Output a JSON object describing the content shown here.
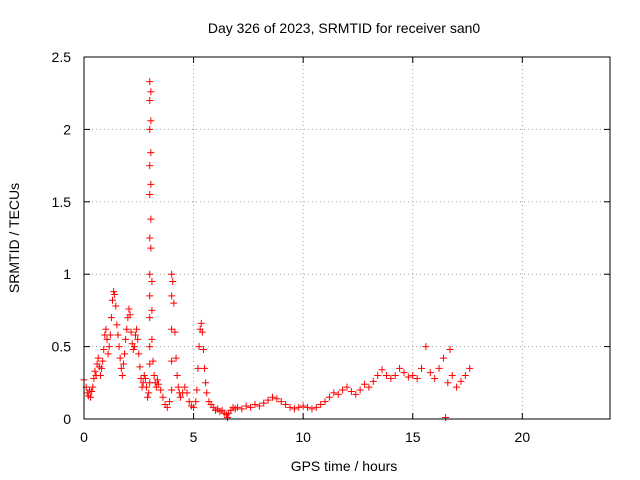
{
  "chart_data": {
    "type": "scatter",
    "title": "Day 326 of 2023, SRMTID for receiver san0",
    "xlabel": "GPS time / hours",
    "ylabel": "SRMTID / TECUs",
    "xlim": [
      0,
      24
    ],
    "ylim": [
      0,
      2.5
    ],
    "xticks": [
      0,
      5,
      10,
      15,
      20
    ],
    "xtick_labels": [
      "0",
      "5",
      "10",
      "15",
      "20"
    ],
    "yticks": [
      0,
      0.5,
      1,
      1.5,
      2,
      2.5
    ],
    "ytick_labels": [
      "0",
      "0.5",
      "1",
      "1.5",
      "2",
      "2.5"
    ],
    "grid": true,
    "marker": "+",
    "marker_color": "#ff0000",
    "series": [
      {
        "name": "SRMTID",
        "points": [
          [
            0.0,
            0.27
          ],
          [
            0.1,
            0.22
          ],
          [
            0.15,
            0.18
          ],
          [
            0.2,
            0.16
          ],
          [
            0.25,
            0.2
          ],
          [
            0.3,
            0.15
          ],
          [
            0.35,
            0.19
          ],
          [
            0.4,
            0.22
          ],
          [
            0.45,
            0.28
          ],
          [
            0.5,
            0.33
          ],
          [
            0.55,
            0.3
          ],
          [
            0.6,
            0.38
          ],
          [
            0.65,
            0.42
          ],
          [
            0.7,
            0.36
          ],
          [
            0.75,
            0.3
          ],
          [
            0.8,
            0.35
          ],
          [
            0.85,
            0.4
          ],
          [
            0.9,
            0.48
          ],
          [
            0.95,
            0.58
          ],
          [
            1.0,
            0.62
          ],
          [
            1.05,
            0.55
          ],
          [
            1.1,
            0.45
          ],
          [
            1.15,
            0.5
          ],
          [
            1.2,
            0.58
          ],
          [
            1.25,
            0.7
          ],
          [
            1.3,
            0.82
          ],
          [
            1.35,
            0.88
          ],
          [
            1.4,
            0.86
          ],
          [
            1.45,
            0.78
          ],
          [
            1.5,
            0.65
          ],
          [
            1.55,
            0.58
          ],
          [
            1.6,
            0.5
          ],
          [
            1.65,
            0.42
          ],
          [
            1.7,
            0.35
          ],
          [
            1.75,
            0.3
          ],
          [
            1.8,
            0.38
          ],
          [
            1.85,
            0.45
          ],
          [
            1.9,
            0.55
          ],
          [
            1.95,
            0.62
          ],
          [
            2.0,
            0.7
          ],
          [
            2.05,
            0.76
          ],
          [
            2.1,
            0.72
          ],
          [
            2.15,
            0.6
          ],
          [
            2.2,
            0.52
          ],
          [
            2.25,
            0.48
          ],
          [
            2.3,
            0.5
          ],
          [
            2.35,
            0.58
          ],
          [
            2.4,
            0.62
          ],
          [
            2.45,
            0.55
          ],
          [
            2.5,
            0.45
          ],
          [
            2.55,
            0.36
          ],
          [
            2.6,
            0.28
          ],
          [
            2.65,
            0.22
          ],
          [
            2.7,
            0.25
          ],
          [
            2.75,
            0.3
          ],
          [
            2.8,
            0.28
          ],
          [
            2.85,
            0.22
          ],
          [
            2.9,
            0.15
          ],
          [
            2.95,
            0.18
          ],
          [
            3.0,
            0.25
          ],
          [
            3.0,
            0.38
          ],
          [
            3.0,
            0.5
          ],
          [
            3.0,
            0.7
          ],
          [
            3.0,
            0.85
          ],
          [
            3.0,
            1.0
          ],
          [
            3.0,
            1.25
          ],
          [
            3.0,
            1.55
          ],
          [
            3.0,
            1.75
          ],
          [
            3.0,
            2.0
          ],
          [
            3.0,
            2.2
          ],
          [
            3.0,
            2.33
          ],
          [
            3.05,
            2.26
          ],
          [
            3.05,
            2.06
          ],
          [
            3.05,
            1.84
          ],
          [
            3.05,
            1.62
          ],
          [
            3.05,
            1.38
          ],
          [
            3.05,
            1.18
          ],
          [
            3.1,
            0.95
          ],
          [
            3.1,
            0.75
          ],
          [
            3.1,
            0.55
          ],
          [
            3.15,
            0.4
          ],
          [
            3.2,
            0.3
          ],
          [
            3.25,
            0.25
          ],
          [
            3.3,
            0.22
          ],
          [
            3.35,
            0.27
          ],
          [
            3.4,
            0.24
          ],
          [
            3.5,
            0.2
          ],
          [
            3.6,
            0.15
          ],
          [
            3.7,
            0.1
          ],
          [
            3.8,
            0.08
          ],
          [
            3.9,
            0.12
          ],
          [
            4.0,
            0.2
          ],
          [
            4.0,
            0.4
          ],
          [
            4.0,
            0.62
          ],
          [
            4.0,
            0.85
          ],
          [
            4.0,
            1.0
          ],
          [
            4.05,
            0.95
          ],
          [
            4.1,
            0.8
          ],
          [
            4.15,
            0.6
          ],
          [
            4.2,
            0.42
          ],
          [
            4.25,
            0.3
          ],
          [
            4.3,
            0.22
          ],
          [
            4.35,
            0.18
          ],
          [
            4.4,
            0.15
          ],
          [
            4.5,
            0.18
          ],
          [
            4.6,
            0.22
          ],
          [
            4.7,
            0.18
          ],
          [
            4.8,
            0.12
          ],
          [
            4.9,
            0.09
          ],
          [
            5.0,
            0.08
          ],
          [
            5.1,
            0.12
          ],
          [
            5.15,
            0.2
          ],
          [
            5.2,
            0.35
          ],
          [
            5.25,
            0.5
          ],
          [
            5.3,
            0.62
          ],
          [
            5.35,
            0.66
          ],
          [
            5.4,
            0.6
          ],
          [
            5.45,
            0.48
          ],
          [
            5.5,
            0.35
          ],
          [
            5.55,
            0.25
          ],
          [
            5.6,
            0.18
          ],
          [
            5.7,
            0.12
          ],
          [
            5.8,
            0.1
          ],
          [
            5.9,
            0.08
          ],
          [
            6.0,
            0.06
          ],
          [
            6.1,
            0.07
          ],
          [
            6.2,
            0.05
          ],
          [
            6.3,
            0.06
          ],
          [
            6.4,
            0.04
          ],
          [
            6.5,
            0.03
          ],
          [
            6.55,
            0.01
          ],
          [
            6.6,
            0.04
          ],
          [
            6.7,
            0.06
          ],
          [
            6.8,
            0.08
          ],
          [
            6.9,
            0.07
          ],
          [
            7.0,
            0.08
          ],
          [
            7.2,
            0.07
          ],
          [
            7.4,
            0.09
          ],
          [
            7.6,
            0.08
          ],
          [
            7.8,
            0.1
          ],
          [
            8.0,
            0.09
          ],
          [
            8.2,
            0.11
          ],
          [
            8.4,
            0.13
          ],
          [
            8.6,
            0.15
          ],
          [
            8.8,
            0.14
          ],
          [
            9.0,
            0.12
          ],
          [
            9.2,
            0.1
          ],
          [
            9.4,
            0.08
          ],
          [
            9.6,
            0.07
          ],
          [
            9.8,
            0.08
          ],
          [
            10.0,
            0.09
          ],
          [
            10.2,
            0.08
          ],
          [
            10.4,
            0.07
          ],
          [
            10.6,
            0.08
          ],
          [
            10.8,
            0.1
          ],
          [
            11.0,
            0.12
          ],
          [
            11.2,
            0.15
          ],
          [
            11.4,
            0.18
          ],
          [
            11.6,
            0.17
          ],
          [
            11.8,
            0.2
          ],
          [
            12.0,
            0.22
          ],
          [
            12.2,
            0.19
          ],
          [
            12.4,
            0.17
          ],
          [
            12.6,
            0.2
          ],
          [
            12.8,
            0.24
          ],
          [
            13.0,
            0.22
          ],
          [
            13.2,
            0.26
          ],
          [
            13.4,
            0.3
          ],
          [
            13.6,
            0.34
          ],
          [
            13.8,
            0.3
          ],
          [
            14.0,
            0.28
          ],
          [
            14.2,
            0.3
          ],
          [
            14.4,
            0.35
          ],
          [
            14.6,
            0.32
          ],
          [
            14.8,
            0.29
          ],
          [
            15.0,
            0.3
          ],
          [
            15.2,
            0.28
          ],
          [
            15.4,
            0.35
          ],
          [
            15.6,
            0.5
          ],
          [
            15.8,
            0.32
          ],
          [
            16.0,
            0.28
          ],
          [
            16.2,
            0.35
          ],
          [
            16.4,
            0.42
          ],
          [
            16.5,
            0.01
          ],
          [
            16.6,
            0.25
          ],
          [
            16.7,
            0.48
          ],
          [
            16.8,
            0.3
          ],
          [
            17.0,
            0.22
          ],
          [
            17.2,
            0.26
          ],
          [
            17.4,
            0.3
          ],
          [
            17.6,
            0.35
          ]
        ]
      }
    ]
  }
}
